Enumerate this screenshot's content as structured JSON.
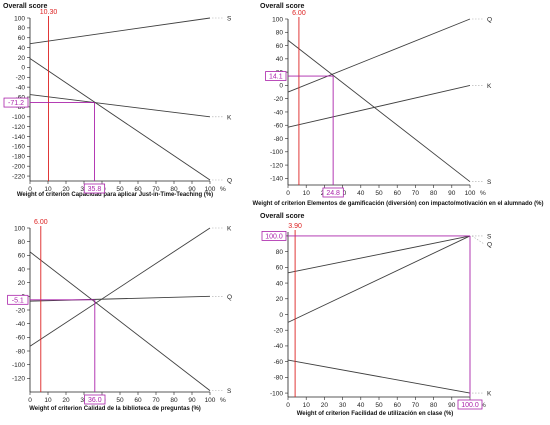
{
  "chart_data": [
    {
      "type": "line",
      "title": "Overall score",
      "xlabel": "Weight of criterion Capacidad para aplicar Just-in-Time-Teaching (%)",
      "x_unit": "%",
      "xlim": [
        0,
        100
      ],
      "ylim": [
        -230,
        100
      ],
      "x_ticks": [
        "0",
        "10",
        "20",
        "30",
        "40",
        "50",
        "60",
        "70",
        "80",
        "90",
        "100"
      ],
      "y_ticks": [
        "100",
        "80",
        "60",
        "40",
        "20",
        "0",
        "-20",
        "-40",
        "-60",
        "-80",
        "-100",
        "-120",
        "-140",
        "-160",
        "-180",
        "-200",
        "-220"
      ],
      "series": [
        {
          "name": "S",
          "x": [
            0,
            100
          ],
          "y": [
            48,
            100
          ]
        },
        {
          "name": "K",
          "x": [
            0,
            100
          ],
          "y": [
            -55,
            -100
          ]
        },
        {
          "name": "Q",
          "x": [
            0,
            100
          ],
          "y": [
            18,
            -228
          ]
        }
      ],
      "current_weight": 10.3,
      "current_weight_label": "10.30",
      "intersection": {
        "x": 35.8,
        "y": -71.2
      },
      "marker_x_label": "35.8",
      "marker_y_label": "-71.2"
    },
    {
      "type": "line",
      "title": "Overall score",
      "xlabel": "Weight of criterion Elementos de gamificación (diversión) con impacto/motivación en el alumnado (%)",
      "x_unit": "%",
      "xlim": [
        0,
        100
      ],
      "ylim": [
        -150,
        100
      ],
      "x_ticks": [
        "0",
        "10",
        "20",
        "30",
        "40",
        "50",
        "60",
        "70",
        "80",
        "90",
        "100"
      ],
      "y_ticks": [
        "100",
        "80",
        "60",
        "40",
        "20",
        "0",
        "-20",
        "-40",
        "-60",
        "-80",
        "-100",
        "-120",
        "-140"
      ],
      "series": [
        {
          "name": "Q",
          "x": [
            0,
            100
          ],
          "y": [
            -10,
            100
          ]
        },
        {
          "name": "K",
          "x": [
            0,
            100
          ],
          "y": [
            -63,
            0
          ]
        },
        {
          "name": "S",
          "x": [
            0,
            100
          ],
          "y": [
            68,
            -145
          ]
        }
      ],
      "current_weight": 6.0,
      "current_weight_label": "6.00",
      "intersection": {
        "x": 24.8,
        "y": 14.1
      },
      "marker_x_label": "24.8",
      "marker_y_label": "14.1"
    },
    {
      "type": "line",
      "title": "",
      "xlabel": "Weight of criterion Calidad de la biblioteca de preguntas (%)",
      "x_unit": "%",
      "xlim": [
        0,
        100
      ],
      "ylim": [
        -140,
        100
      ],
      "x_ticks": [
        "0",
        "10",
        "20",
        "30",
        "40",
        "50",
        "60",
        "70",
        "80",
        "90",
        "100"
      ],
      "y_ticks": [
        "100",
        "80",
        "60",
        "40",
        "20",
        "0",
        "-20",
        "-40",
        "-60",
        "-80",
        "-100",
        "-120"
      ],
      "series": [
        {
          "name": "Q",
          "x": [
            0,
            100
          ],
          "y": [
            -7,
            0
          ]
        },
        {
          "name": "K",
          "x": [
            0,
            100
          ],
          "y": [
            -73,
            100
          ]
        },
        {
          "name": "S",
          "x": [
            0,
            100
          ],
          "y": [
            65,
            -138
          ]
        }
      ],
      "current_weight": 6.0,
      "current_weight_label": "6.00",
      "intersection": {
        "x": 36.0,
        "y": -5.1
      },
      "marker_x_label": "36.0",
      "marker_y_label": "-5.1"
    },
    {
      "type": "line",
      "title": "Overall score",
      "xlabel": "Weight of criterion Facilidad de utilización en clase (%)",
      "x_unit": "%",
      "xlim": [
        0,
        100
      ],
      "ylim": [
        -105,
        105
      ],
      "x_ticks": [
        "0",
        "10",
        "20",
        "30",
        "40",
        "50",
        "60",
        "70",
        "80",
        "90",
        "100"
      ],
      "y_ticks": [
        "100",
        "80",
        "60",
        "40",
        "20",
        "0",
        "-20",
        "-40",
        "-60",
        "-80",
        "-100"
      ],
      "series": [
        {
          "name": "S",
          "x": [
            0,
            100
          ],
          "y": [
            53,
            100
          ]
        },
        {
          "name": "Q",
          "x": [
            0,
            100
          ],
          "y": [
            -10,
            100
          ]
        },
        {
          "name": "K",
          "x": [
            0,
            100
          ],
          "y": [
            -58,
            -100
          ]
        }
      ],
      "line_label_order": [
        "S",
        "Q",
        "K"
      ],
      "current_weight": 3.9,
      "current_weight_label": "3.90",
      "intersection": {
        "x": 100.0,
        "y": 100.0
      },
      "marker_x_label": "100.0",
      "marker_y_label": "100.0"
    }
  ],
  "colors": {
    "series_line": "#404040",
    "current_weight_line": "#dd2222",
    "intersection_marker": "#aa22aa",
    "label_leader": "#aaaaaa",
    "axis": "#222222"
  }
}
